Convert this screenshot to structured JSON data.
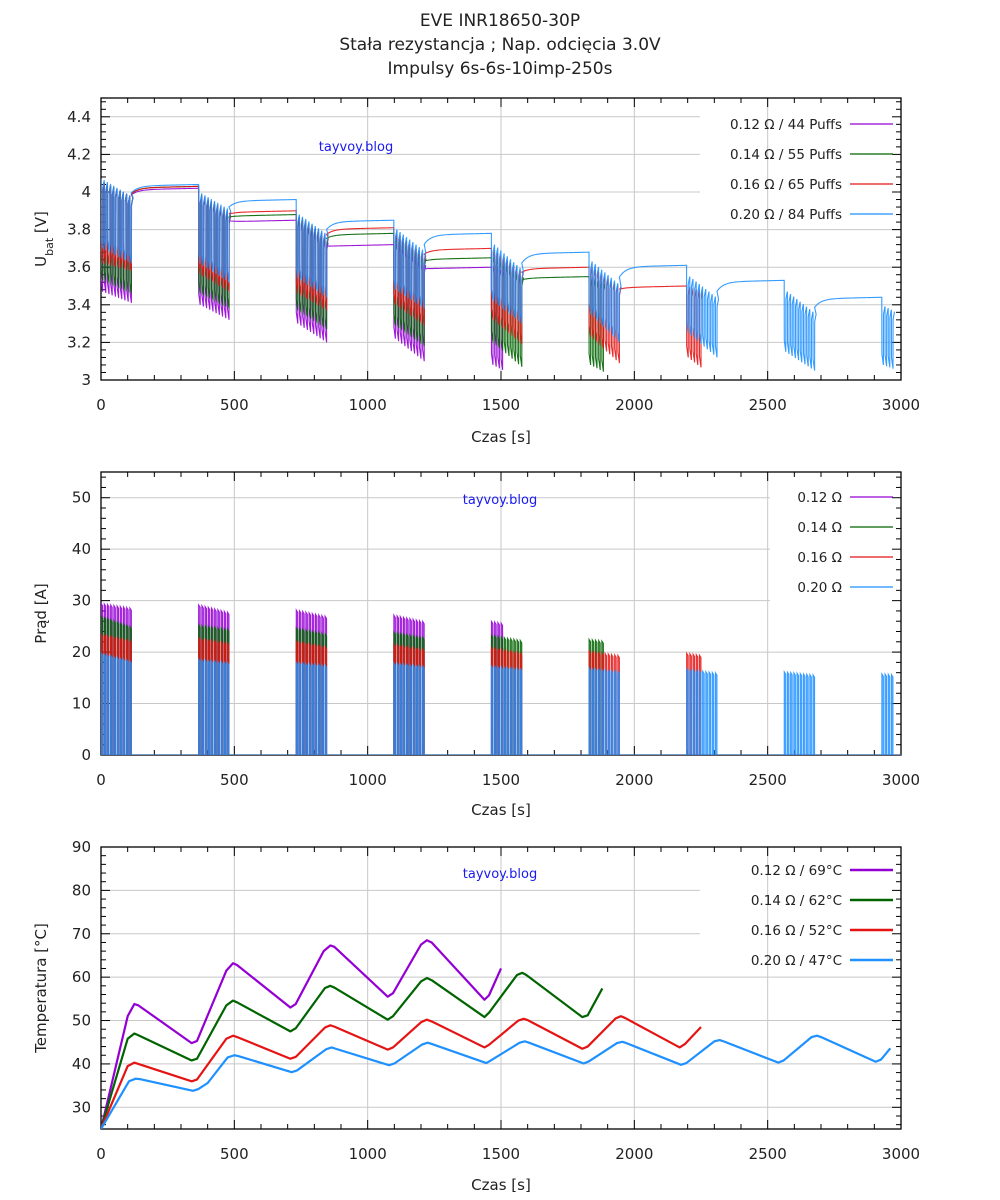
{
  "title": {
    "line1": "EVE INR18650-30P",
    "line2": "Stała rezystancja ; Nap. odcięcia 3.0V",
    "line3": "Impulsy 6s-6s-10imp-250s"
  },
  "watermark": "tayvoy.blog",
  "colors": {
    "r012": "#9400d3",
    "r014": "#006400",
    "r016": "#e51414",
    "r020": "#1e90ff"
  },
  "protocol": {
    "pulse_on_s": 6,
    "pulse_off_s": 6,
    "pulses_per_block": 10,
    "rest_s": 250,
    "block_period_s": 366
  },
  "chart_data": [
    {
      "type": "line",
      "title": "Napięcie",
      "xlabel": "Czas [s]",
      "ylabel_main": "U",
      "ylabel_sub": "bat",
      "ylabel_unit": " [V]",
      "xlim": [
        0,
        3000
      ],
      "ylim": [
        3,
        4.5
      ],
      "xticks": [
        0,
        500,
        1000,
        1500,
        2000,
        2500,
        3000
      ],
      "yticks": [
        3,
        3.2,
        3.4,
        3.6,
        3.8,
        4,
        4.2,
        4.4
      ],
      "ytick_labels": [
        "3",
        "3.2",
        "3.4",
        "3.6",
        "3.8",
        "4",
        "4.2",
        "4.4"
      ],
      "grid": true,
      "legend_position": "top-right",
      "series": [
        {
          "name": "0.12 Ω  /  44 Puffs",
          "key": "r012",
          "puffs": 44,
          "tops": [
            [
              4.06,
              3.98
            ],
            [
              3.99,
              3.88
            ],
            [
              3.86,
              3.74
            ],
            [
              3.74,
              3.62
            ],
            [
              3.62,
              3.55
            ]
          ],
          "troughs": [
            [
              3.47,
              3.41
            ],
            [
              3.4,
              3.32
            ],
            [
              3.3,
              3.2
            ],
            [
              3.22,
              3.1
            ],
            [
              3.08,
              3.0
            ]
          ],
          "rests": [
            4.02,
            3.85,
            3.72,
            3.6
          ]
        },
        {
          "name": "0.14 Ω  /  55 Puffs",
          "key": "r014",
          "puffs": 55,
          "tops": [
            [
              4.06,
              3.98
            ],
            [
              3.99,
              3.89
            ],
            [
              3.87,
              3.76
            ],
            [
              3.77,
              3.65
            ],
            [
              3.67,
              3.55
            ],
            [
              3.55,
              3.5
            ]
          ],
          "troughs": [
            [
              3.53,
              3.46
            ],
            [
              3.46,
              3.38
            ],
            [
              3.37,
              3.27
            ],
            [
              3.29,
              3.18
            ],
            [
              3.2,
              3.07
            ],
            [
              3.08,
              3.0
            ]
          ],
          "rests": [
            4.03,
            3.88,
            3.78,
            3.65,
            3.55
          ]
        },
        {
          "name": "0.16 Ω  /  65 Puffs",
          "key": "r016",
          "puffs": 65,
          "tops": [
            [
              4.06,
              3.98
            ],
            [
              3.99,
              3.9
            ],
            [
              3.88,
              3.77
            ],
            [
              3.79,
              3.67
            ],
            [
              3.7,
              3.58
            ],
            [
              3.61,
              3.5
            ],
            [
              3.5,
              3.45
            ]
          ],
          "troughs": [
            [
              3.62,
              3.58
            ],
            [
              3.56,
              3.47
            ],
            [
              3.46,
              3.37
            ],
            [
              3.4,
              3.29
            ],
            [
              3.32,
              3.19
            ],
            [
              3.23,
              3.09
            ],
            [
              3.12,
              3.0
            ]
          ],
          "rests": [
            4.03,
            3.9,
            3.81,
            3.7,
            3.6,
            3.5
          ]
        },
        {
          "name": "0.20 Ω  /  84 Puffs",
          "key": "r020",
          "puffs": 84,
          "tops": [
            [
              4.07,
              3.98
            ],
            [
              4.0,
              3.91
            ],
            [
              3.89,
              3.78
            ],
            [
              3.81,
              3.69
            ],
            [
              3.73,
              3.59
            ],
            [
              3.64,
              3.51
            ],
            [
              3.56,
              3.44
            ],
            [
              3.48,
              3.36
            ],
            [
              3.4,
              3.32
            ]
          ],
          "troughs": [
            [
              3.7,
              3.62
            ],
            [
              3.62,
              3.52
            ],
            [
              3.54,
              3.44
            ],
            [
              3.48,
              3.38
            ],
            [
              3.42,
              3.3
            ],
            [
              3.35,
              3.2
            ],
            [
              3.25,
              3.12
            ],
            [
              3.15,
              3.05
            ],
            [
              3.08,
              3.02
            ]
          ],
          "rests": [
            4.04,
            3.96,
            3.85,
            3.78,
            3.68,
            3.61,
            3.53,
            3.44
          ]
        }
      ]
    },
    {
      "type": "line",
      "title": "Prąd",
      "xlabel": "Czas [s]",
      "ylabel": "Prąd [A]",
      "xlim": [
        0,
        3000
      ],
      "ylim": [
        0,
        55
      ],
      "xticks": [
        0,
        500,
        1000,
        1500,
        2000,
        2500,
        3000
      ],
      "yticks": [
        0,
        10,
        20,
        30,
        40,
        50
      ],
      "grid": true,
      "legend_position": "top-right",
      "series": [
        {
          "name": "0.12 Ω",
          "key": "r012",
          "puffs": 44,
          "currents": [
            [
              29.5,
              28.6
            ],
            [
              29.2,
              27.8
            ],
            [
              28.2,
              27.0
            ],
            [
              27.2,
              26.0
            ],
            [
              26.0,
              25.0
            ]
          ]
        },
        {
          "name": "0.14 Ω",
          "key": "r014",
          "puffs": 55,
          "currents": [
            [
              27.0,
              25.0
            ],
            [
              25.3,
              24.5
            ],
            [
              24.7,
              23.6
            ],
            [
              23.9,
              22.9
            ],
            [
              23.3,
              22.3
            ],
            [
              22.5,
              21.8
            ]
          ]
        },
        {
          "name": "0.16 Ω",
          "key": "r016",
          "puffs": 65,
          "currents": [
            [
              23.5,
              22.3
            ],
            [
              22.7,
              21.8
            ],
            [
              22.1,
              21.1
            ],
            [
              21.5,
              20.6
            ],
            [
              20.9,
              19.9
            ],
            [
              20.2,
              19.4
            ],
            [
              19.8,
              19.0
            ]
          ]
        },
        {
          "name": "0.20 Ω",
          "key": "r020",
          "puffs": 84,
          "currents": [
            [
              19.8,
              18.3
            ],
            [
              18.6,
              18.0
            ],
            [
              18.0,
              17.5
            ],
            [
              17.9,
              17.3
            ],
            [
              17.3,
              16.8
            ],
            [
              16.9,
              16.3
            ],
            [
              16.7,
              16.0
            ],
            [
              16.2,
              15.6
            ],
            [
              15.8,
              15.4
            ]
          ]
        }
      ]
    },
    {
      "type": "line",
      "title": "Temperatura",
      "xlabel": "Czas [s]",
      "ylabel": "Temperatura [°C]",
      "xlim": [
        0,
        3000
      ],
      "ylim": [
        25,
        90
      ],
      "xticks": [
        0,
        500,
        1000,
        1500,
        2000,
        2500,
        3000
      ],
      "yticks": [
        30,
        40,
        50,
        60,
        70,
        80,
        90
      ],
      "grid": true,
      "legend_position": "top-right",
      "series": [
        {
          "name": "0.12 Ω  / 69°C",
          "key": "r012",
          "points": [
            [
              0,
              25
            ],
            [
              100,
              51
            ],
            [
              125,
              53.8
            ],
            [
              140,
              53.5
            ],
            [
              340,
              44.8
            ],
            [
              360,
              45.3
            ],
            [
              470,
              61.5
            ],
            [
              495,
              63.2
            ],
            [
              510,
              62.8
            ],
            [
              710,
              53
            ],
            [
              730,
              53.8
            ],
            [
              835,
              66
            ],
            [
              860,
              67.3
            ],
            [
              875,
              67
            ],
            [
              1075,
              55.5
            ],
            [
              1095,
              56.3
            ],
            [
              1200,
              67.5
            ],
            [
              1222,
              68.5
            ],
            [
              1240,
              68
            ],
            [
              1438,
              54.8
            ],
            [
              1455,
              55.8
            ],
            [
              1500,
              62
            ]
          ]
        },
        {
          "name": "0.14 Ω  / 62°C",
          "key": "r014",
          "points": [
            [
              0,
              25
            ],
            [
              100,
              45.8
            ],
            [
              125,
              47
            ],
            [
              140,
              46.6
            ],
            [
              340,
              40.8
            ],
            [
              360,
              41.2
            ],
            [
              470,
              53.5
            ],
            [
              495,
              54.6
            ],
            [
              510,
              54.2
            ],
            [
              710,
              47.5
            ],
            [
              730,
              48.2
            ],
            [
              840,
              57.5
            ],
            [
              860,
              58
            ],
            [
              875,
              57.6
            ],
            [
              1075,
              50.2
            ],
            [
              1095,
              51
            ],
            [
              1200,
              59
            ],
            [
              1222,
              59.8
            ],
            [
              1240,
              59.3
            ],
            [
              1438,
              50.8
            ],
            [
              1455,
              51.8
            ],
            [
              1560,
              60.5
            ],
            [
              1580,
              61
            ],
            [
              1595,
              60.5
            ],
            [
              1805,
              50.8
            ],
            [
              1825,
              51.2
            ],
            [
              1880,
              57.4
            ]
          ]
        },
        {
          "name": "0.16 Ω  / 52°C",
          "key": "r016",
          "points": [
            [
              0,
              25
            ],
            [
              100,
              39.5
            ],
            [
              125,
              40.3
            ],
            [
              140,
              40
            ],
            [
              340,
              36
            ],
            [
              360,
              36.4
            ],
            [
              470,
              45.8
            ],
            [
              495,
              46.5
            ],
            [
              510,
              46.2
            ],
            [
              710,
              41.2
            ],
            [
              730,
              41.6
            ],
            [
              840,
              48.4
            ],
            [
              860,
              48.9
            ],
            [
              875,
              48.6
            ],
            [
              1075,
              43.3
            ],
            [
              1095,
              43.8
            ],
            [
              1200,
              49.6
            ],
            [
              1222,
              50.2
            ],
            [
              1240,
              49.8
            ],
            [
              1438,
              43.8
            ],
            [
              1455,
              44.4
            ],
            [
              1565,
              50
            ],
            [
              1585,
              50.4
            ],
            [
              1600,
              50.1
            ],
            [
              1805,
              43.5
            ],
            [
              1825,
              44
            ],
            [
              1930,
              50.5
            ],
            [
              1950,
              51
            ],
            [
              1965,
              50.6
            ],
            [
              2170,
              43.8
            ],
            [
              2190,
              44.6
            ],
            [
              2250,
              48.5
            ]
          ]
        },
        {
          "name": "0.20 Ω  / 47°C",
          "key": "r020",
          "points": [
            [
              0,
              25
            ],
            [
              105,
              36
            ],
            [
              130,
              36.6
            ],
            [
              145,
              36.5
            ],
            [
              345,
              33.8
            ],
            [
              365,
              34.2
            ],
            [
              400,
              35.6
            ],
            [
              475,
              41.5
            ],
            [
              500,
              42
            ],
            [
              515,
              41.8
            ],
            [
              715,
              38.1
            ],
            [
              735,
              38.5
            ],
            [
              845,
              43.4
            ],
            [
              865,
              43.8
            ],
            [
              880,
              43.5
            ],
            [
              1080,
              39.7
            ],
            [
              1100,
              40.1
            ],
            [
              1205,
              44.5
            ],
            [
              1225,
              44.9
            ],
            [
              1240,
              44.6
            ],
            [
              1445,
              40.2
            ],
            [
              1462,
              40.8
            ],
            [
              1570,
              44.9
            ],
            [
              1590,
              45.2
            ],
            [
              1605,
              44.9
            ],
            [
              1810,
              40.1
            ],
            [
              1830,
              40.6
            ],
            [
              1935,
              44.8
            ],
            [
              1955,
              45.1
            ],
            [
              1970,
              44.8
            ],
            [
              2175,
              39.8
            ],
            [
              2195,
              40.2
            ],
            [
              2300,
              45.2
            ],
            [
              2320,
              45.5
            ],
            [
              2335,
              45.2
            ],
            [
              2540,
              40.3
            ],
            [
              2560,
              40.8
            ],
            [
              2665,
              46.2
            ],
            [
              2685,
              46.5
            ],
            [
              2700,
              46.2
            ],
            [
              2905,
              40.5
            ],
            [
              2925,
              41
            ],
            [
              2960,
              43.6
            ]
          ]
        }
      ]
    }
  ]
}
